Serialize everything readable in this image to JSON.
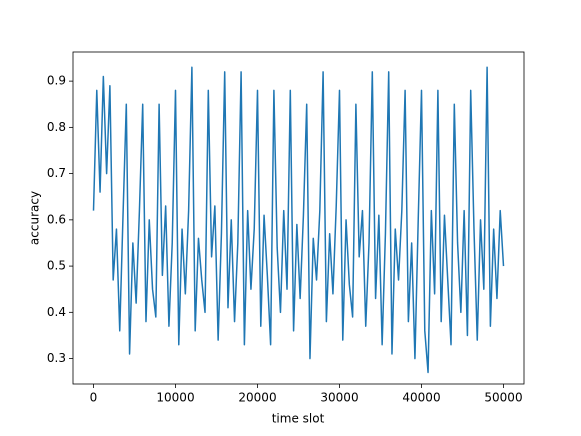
{
  "chart_data": {
    "type": "line",
    "xlabel": "time slot",
    "ylabel": "accuracy",
    "x": [
      0,
      400,
      800,
      1200,
      1600,
      2000,
      2400,
      2800,
      3200,
      3600,
      4000,
      4400,
      4800,
      5200,
      5600,
      6000,
      6400,
      6800,
      7200,
      7600,
      8000,
      8400,
      8800,
      9200,
      9600,
      10000,
      10400,
      10800,
      11200,
      11600,
      12000,
      12400,
      12800,
      13200,
      13600,
      14000,
      14400,
      14800,
      15200,
      15600,
      16000,
      16400,
      16800,
      17200,
      17600,
      18000,
      18400,
      18800,
      19200,
      19600,
      20000,
      20400,
      20800,
      21200,
      21600,
      22000,
      22400,
      22800,
      23200,
      23600,
      24000,
      24400,
      24800,
      25200,
      25600,
      26000,
      26400,
      26800,
      27200,
      27600,
      28000,
      28400,
      28800,
      29200,
      29600,
      30000,
      30400,
      30800,
      31200,
      31600,
      32000,
      32400,
      32800,
      33200,
      33600,
      34000,
      34400,
      34800,
      35200,
      35600,
      36000,
      36400,
      36800,
      37200,
      37600,
      38000,
      38400,
      38800,
      39200,
      39600,
      40000,
      40400,
      40800,
      41200,
      41600,
      42000,
      42400,
      42800,
      43200,
      43600,
      44000,
      44400,
      44800,
      45200,
      45600,
      46000,
      46400,
      46800,
      47200,
      47600,
      48000,
      48400,
      48800,
      49200,
      49600,
      50000
    ],
    "series": [
      {
        "color": "#1f77b4",
        "values": [
          0.62,
          0.88,
          0.66,
          0.91,
          0.7,
          0.89,
          0.47,
          0.58,
          0.36,
          0.61,
          0.85,
          0.31,
          0.55,
          0.42,
          0.62,
          0.85,
          0.38,
          0.6,
          0.45,
          0.39,
          0.85,
          0.48,
          0.63,
          0.37,
          0.55,
          0.88,
          0.33,
          0.58,
          0.44,
          0.62,
          0.93,
          0.36,
          0.56,
          0.47,
          0.4,
          0.88,
          0.52,
          0.63,
          0.34,
          0.57,
          0.92,
          0.41,
          0.6,
          0.38,
          0.55,
          0.92,
          0.33,
          0.62,
          0.45,
          0.58,
          0.88,
          0.37,
          0.61,
          0.48,
          0.33,
          0.88,
          0.54,
          0.4,
          0.62,
          0.45,
          0.88,
          0.36,
          0.59,
          0.43,
          0.61,
          0.85,
          0.3,
          0.56,
          0.47,
          0.62,
          0.92,
          0.38,
          0.57,
          0.44,
          0.63,
          0.88,
          0.34,
          0.6,
          0.46,
          0.39,
          0.85,
          0.52,
          0.62,
          0.37,
          0.55,
          0.92,
          0.43,
          0.61,
          0.33,
          0.57,
          0.92,
          0.31,
          0.58,
          0.47,
          0.62,
          0.88,
          0.38,
          0.55,
          0.3,
          0.6,
          0.88,
          0.36,
          0.27,
          0.62,
          0.44,
          0.88,
          0.38,
          0.61,
          0.47,
          0.33,
          0.85,
          0.55,
          0.4,
          0.62,
          0.35,
          0.88,
          0.58,
          0.34,
          0.6,
          0.45,
          0.93,
          0.37,
          0.58,
          0.43,
          0.62,
          0.5
        ]
      }
    ],
    "xlim": [
      -2500,
      52500
    ],
    "ylim": [
      0.245,
      0.963
    ],
    "xticks": [
      0,
      10000,
      20000,
      30000,
      40000,
      50000
    ],
    "yticks": [
      0.3,
      0.4,
      0.5,
      0.6,
      0.7,
      0.8,
      0.9
    ]
  }
}
